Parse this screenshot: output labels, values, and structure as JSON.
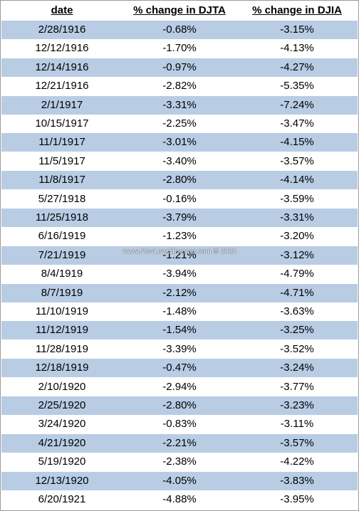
{
  "table": {
    "header": [
      "date",
      "% change in DJTA",
      "% change in DJIA"
    ],
    "rows": [
      [
        "2/28/1916",
        "-0.68%",
        "-3.15%"
      ],
      [
        "12/12/1916",
        "-1.70%",
        "-4.13%"
      ],
      [
        "12/14/1916",
        "-0.97%",
        "-4.27%"
      ],
      [
        "12/21/1916",
        "-2.82%",
        "-5.35%"
      ],
      [
        "2/1/1917",
        "-3.31%",
        "-7.24%"
      ],
      [
        "10/15/1917",
        "-2.25%",
        "-3.47%"
      ],
      [
        "11/1/1917",
        "-3.01%",
        "-4.15%"
      ],
      [
        "11/5/1917",
        "-3.40%",
        "-3.57%"
      ],
      [
        "11/8/1917",
        "-2.80%",
        "-4.14%"
      ],
      [
        "5/27/1918",
        "-0.16%",
        "-3.59%"
      ],
      [
        "11/25/1918",
        "-3.79%",
        "-3.31%"
      ],
      [
        "6/16/1919",
        "-1.23%",
        "-3.20%"
      ],
      [
        "7/21/1919",
        "-1.21%",
        "-3.12%"
      ],
      [
        "8/4/1919",
        "-3.94%",
        "-4.79%"
      ],
      [
        "8/7/1919",
        "-2.12%",
        "-4.71%"
      ],
      [
        "11/10/1919",
        "-1.48%",
        "-3.63%"
      ],
      [
        "11/12/1919",
        "-1.54%",
        "-3.25%"
      ],
      [
        "11/28/1919",
        "-3.39%",
        "-3.52%"
      ],
      [
        "12/18/1919",
        "-0.47%",
        "-3.24%"
      ],
      [
        "2/10/1920",
        "-2.94%",
        "-3.77%"
      ],
      [
        "2/25/1920",
        "-2.80%",
        "-3.23%"
      ],
      [
        "3/24/1920",
        "-0.83%",
        "-3.11%"
      ],
      [
        "4/21/1920",
        "-2.21%",
        "-3.57%"
      ],
      [
        "5/19/1920",
        "-2.38%",
        "-4.22%"
      ],
      [
        "12/13/1920",
        "-4.05%",
        "-3.83%"
      ],
      [
        "6/20/1921",
        "-4.88%",
        "-3.95%"
      ]
    ]
  },
  "watermark": "www.NewLowObserver.com © 2020"
}
